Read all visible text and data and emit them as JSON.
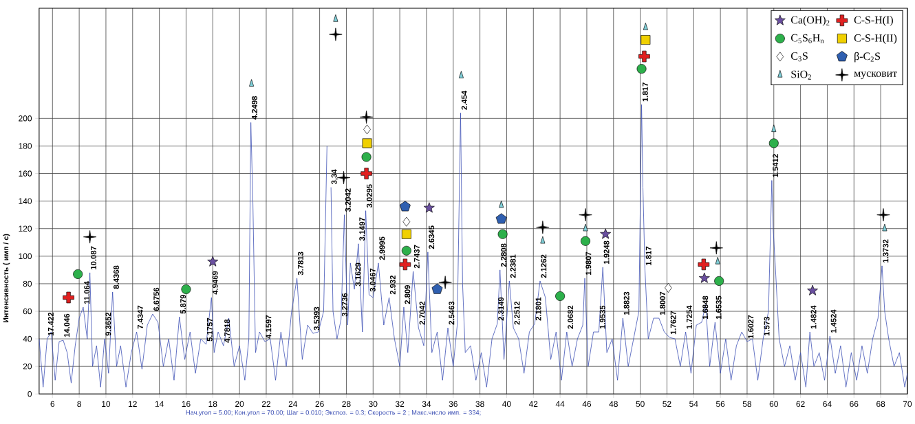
{
  "chart_data": {
    "type": "line",
    "xlim": [
      5,
      70
    ],
    "ylim": [
      0,
      280
    ],
    "xticks": [
      6,
      8,
      10,
      12,
      14,
      16,
      18,
      20,
      22,
      24,
      26,
      28,
      30,
      32,
      34,
      36,
      38,
      40,
      42,
      44,
      46,
      48,
      50,
      52,
      54,
      56,
      58,
      60,
      62,
      64,
      66,
      68,
      70
    ],
    "yticks": [
      0,
      20,
      40,
      60,
      80,
      100,
      120,
      140,
      160,
      180,
      200
    ],
    "ylabel": "Интенсивность ( имп / с)",
    "grid": true,
    "legend": "top right",
    "series": [
      {
        "color": "#3c4fb4",
        "x": [
          5,
          5.3,
          5.6,
          5.9,
          6.2,
          6.5,
          6.8,
          7.1,
          7.4,
          7.7,
          8.0,
          8.3,
          8.6,
          8.8,
          9.0,
          9.3,
          9.6,
          9.9,
          10.2,
          10.5,
          10.8,
          11.1,
          11.5,
          11.9,
          12.3,
          12.7,
          13.1,
          13.5,
          13.9,
          14.3,
          14.7,
          15.1,
          15.5,
          15.9,
          16.3,
          16.7,
          17.1,
          17.5,
          17.9,
          18.1,
          18.4,
          18.8,
          19.2,
          19.6,
          20.0,
          20.4,
          20.7,
          20.85,
          21.0,
          21.2,
          21.5,
          21.9,
          22.3,
          22.7,
          23.1,
          23.5,
          23.9,
          24.3,
          24.7,
          25.1,
          25.5,
          25.9,
          26.3,
          26.55,
          26.65,
          26.75,
          26.85,
          27.0,
          27.3,
          27.6,
          27.85,
          28.1,
          28.3,
          28.6,
          28.9,
          29.2,
          29.45,
          29.7,
          30.0,
          30.4,
          30.8,
          31.2,
          31.6,
          32.0,
          32.3,
          32.6,
          33.0,
          33.4,
          33.8,
          34.1,
          34.4,
          34.8,
          35.2,
          35.6,
          36.0,
          36.3,
          36.55,
          36.7,
          36.9,
          37.3,
          37.7,
          38.1,
          38.5,
          38.9,
          39.3,
          39.5,
          39.8,
          40.2,
          40.5,
          40.9,
          41.3,
          41.7,
          42.1,
          42.5,
          42.9,
          43.3,
          43.7,
          44.1,
          44.5,
          44.9,
          45.3,
          45.7,
          45.85,
          46.1,
          46.5,
          46.9,
          47.2,
          47.5,
          47.9,
          48.3,
          48.7,
          49.1,
          49.5,
          49.9,
          50.1,
          50.2,
          50.35,
          50.6,
          51.0,
          51.4,
          51.8,
          52.2,
          52.6,
          53.0,
          53.4,
          53.8,
          54.2,
          54.6,
          54.9,
          55.2,
          55.6,
          56.0,
          56.4,
          56.8,
          57.2,
          57.6,
          58.0,
          58.4,
          58.8,
          59.2,
          59.6,
          59.85,
          59.95,
          60.1,
          60.4,
          60.8,
          61.2,
          61.6,
          62.0,
          62.4,
          62.7,
          63.0,
          63.4,
          63.8,
          64.2,
          64.6,
          65.0,
          65.4,
          65.8,
          66.2,
          66.6,
          67.0,
          67.4,
          67.8,
          68.1,
          68.3,
          68.6,
          69.0,
          69.4,
          69.8,
          70
        ],
        "values": [
          40,
          5,
          40,
          45,
          10,
          38,
          39,
          30,
          8,
          35,
          55,
          63,
          40,
          88,
          20,
          35,
          5,
          40,
          15,
          74,
          20,
          35,
          5,
          30,
          45,
          18,
          50,
          58,
          52,
          20,
          40,
          10,
          56,
          25,
          45,
          15,
          40,
          36,
          70,
          30,
          45,
          35,
          55,
          20,
          35,
          10,
          40,
          197,
          140,
          30,
          45,
          38,
          40,
          10,
          45,
          20,
          60,
          84,
          25,
          50,
          44,
          45,
          60,
          180,
          null,
          null,
          150,
          60,
          40,
          54,
          130,
          50,
          95,
          76,
          109,
          45,
          133,
          72,
          70,
          95,
          50,
          70,
          40,
          20,
          63,
          30,
          89,
          48,
          35,
          103,
          30,
          45,
          10,
          48,
          20,
          50,
          204,
          80,
          30,
          35,
          10,
          30,
          5,
          40,
          51,
          90,
          25,
          82,
          48,
          40,
          15,
          45,
          51,
          82,
          70,
          25,
          45,
          10,
          45,
          20,
          40,
          50,
          84,
          20,
          45,
          45,
          92,
          30,
          40,
          10,
          55,
          20,
          40,
          60,
          210,
          150,
          91,
          40,
          55,
          55,
          45,
          41,
          40,
          20,
          45,
          15,
          50,
          52,
          65,
          20,
          52,
          15,
          40,
          10,
          35,
          45,
          38,
          40,
          10,
          40,
          60,
          155,
          120,
          95,
          40,
          20,
          35,
          10,
          30,
          5,
          45,
          20,
          30,
          10,
          42,
          15,
          35,
          5,
          30,
          10,
          35,
          15,
          40,
          55,
          93,
          60,
          40,
          20,
          30,
          5,
          15
        ]
      },
      {
        "name": "Ca(OH)$_{2}$",
        "type": "scatter",
        "marker": "star",
        "color": "#6a4fa0",
        "x": [
          18.0,
          34.2,
          47.4,
          54.8,
          62.9
        ],
        "values": [
          96,
          135,
          116,
          84,
          75
        ]
      },
      {
        "name": "C-S-H(I)",
        "type": "scatter",
        "marker": "plus",
        "color": "#e02020",
        "x": [
          7.2,
          29.5,
          32.4,
          50.3,
          54.75
        ],
        "values": [
          70,
          160,
          94,
          245,
          94
        ]
      },
      {
        "name": "C$_{5}$S$_{6}$H$_{n}$",
        "type": "scatter",
        "marker": "circle",
        "color": "#2db04b",
        "x": [
          7.9,
          16.0,
          29.5,
          32.5,
          39.7,
          44.0,
          45.9,
          50.1,
          55.9,
          60.0
        ],
        "values": [
          87,
          76,
          172,
          104,
          116,
          71,
          111,
          236,
          82,
          182
        ]
      },
      {
        "name": "C-S-H(II)",
        "type": "scatter",
        "marker": "square",
        "color": "#f0d000",
        "x": [
          29.55,
          32.5,
          50.4
        ],
        "values": [
          182,
          116,
          257
        ]
      },
      {
        "name": "C$_{3}$S",
        "type": "scatter",
        "marker": "diamond",
        "color": "#ffffff",
        "x": [
          29.55,
          32.5,
          52.1
        ],
        "values": [
          192,
          125,
          77
        ]
      },
      {
        "name": "β-C$_{2}$S",
        "type": "scatter",
        "color": "#2f5fb0",
        "x": [
          32.4,
          34.8,
          39.6
        ],
        "values": [
          136,
          76,
          127
        ]
      },
      {
        "name": "SiO$_{2}$",
        "type": "scatter",
        "marker": "triangle",
        "color": "#7fcfd8",
        "x": [
          20.9,
          27.2,
          36.6,
          39.6,
          42.7,
          45.9,
          50.4,
          55.8,
          60.0,
          68.3
        ],
        "values": [
          225,
          272,
          231,
          137,
          111,
          120,
          266,
          96,
          192,
          120
        ]
      },
      {
        "name": "мусковит",
        "type": "scatter",
        "marker": "cross",
        "color": "#000000",
        "x": [
          8.8,
          27.2,
          27.8,
          29.5,
          35.4,
          42.7,
          45.9,
          55.7,
          68.2
        ],
        "values": [
          114,
          261,
          157,
          201,
          81,
          121,
          130,
          106,
          130
        ]
      }
    ],
    "annotations": [
      {
        "text": "17.422",
        "x": 5.6,
        "y": 40
      },
      {
        "text": "14.046",
        "x": 6.8,
        "y": 39
      },
      {
        "text": "11.064",
        "x": 8.3,
        "y": 63
      },
      {
        "text": "10.087",
        "x": 8.8,
        "y": 88
      },
      {
        "text": "9.3652",
        "x": 9.9,
        "y": 40
      },
      {
        "text": "8.4368",
        "x": 10.5,
        "y": 74
      },
      {
        "text": "7.4347",
        "x": 12.3,
        "y": 45
      },
      {
        "text": "6.6756",
        "x": 13.5,
        "y": 58
      },
      {
        "text": "5.879",
        "x": 15.5,
        "y": 56
      },
      {
        "text": "5.1757",
        "x": 17.5,
        "y": 36
      },
      {
        "text": "4.9469",
        "x": 17.9,
        "y": 70
      },
      {
        "text": "4.7818",
        "x": 18.8,
        "y": 35
      },
      {
        "text": "4.2498",
        "x": 20.85,
        "y": 197
      },
      {
        "text": "4.1597",
        "x": 21.9,
        "y": 38
      },
      {
        "text": "3.7813",
        "x": 24.3,
        "y": 84
      },
      {
        "text": "3.5393",
        "x": 25.5,
        "y": 44
      },
      {
        "text": "3,34",
        "x": 26.85,
        "y": 150
      },
      {
        "text": "3.2736",
        "x": 27.6,
        "y": 54
      },
      {
        "text": "3.2042",
        "x": 27.85,
        "y": 130
      },
      {
        "text": "3.1497",
        "x": 28.9,
        "y": 109
      },
      {
        "text": "3.1629",
        "x": 28.6,
        "y": 76
      },
      {
        "text": "3.0467",
        "x": 29.7,
        "y": 72
      },
      {
        "text": "3.0295",
        "x": 29.45,
        "y": 133
      },
      {
        "text": "2.9995",
        "x": 30.4,
        "y": 95
      },
      {
        "text": "2.932",
        "x": 31.2,
        "y": 70
      },
      {
        "text": "2.809",
        "x": 32.3,
        "y": 63
      },
      {
        "text": "2.7437",
        "x": 33.0,
        "y": 89
      },
      {
        "text": "2.7042",
        "x": 33.4,
        "y": 48
      },
      {
        "text": "2.6345",
        "x": 34.1,
        "y": 103
      },
      {
        "text": "2.5463",
        "x": 35.6,
        "y": 48
      },
      {
        "text": "2.454",
        "x": 36.55,
        "y": 204
      },
      {
        "text": "2.3149",
        "x": 39.3,
        "y": 51
      },
      {
        "text": "2.2808",
        "x": 39.5,
        "y": 90
      },
      {
        "text": "2.2381",
        "x": 40.2,
        "y": 82
      },
      {
        "text": "2.2512",
        "x": 40.5,
        "y": 48
      },
      {
        "text": "2.1801",
        "x": 42.1,
        "y": 51
      },
      {
        "text": "2.1262",
        "x": 42.5,
        "y": 82
      },
      {
        "text": "2.0682",
        "x": 44.5,
        "y": 45
      },
      {
        "text": "1.9807",
        "x": 45.85,
        "y": 84
      },
      {
        "text": "1.9535",
        "x": 46.9,
        "y": 45
      },
      {
        "text": "1.9248",
        "x": 47.2,
        "y": 92
      },
      {
        "text": "1.8823",
        "x": 48.7,
        "y": 55
      },
      {
        "text": "1.817",
        "x": 50.1,
        "y": 210
      },
      {
        "text": "1.817",
        "x": 50.35,
        "y": 91
      },
      {
        "text": "1.8007",
        "x": 51.4,
        "y": 55
      },
      {
        "text": "1.7627",
        "x": 52.2,
        "y": 41
      },
      {
        "text": "1.7254",
        "x": 53.4,
        "y": 45
      },
      {
        "text": "1.6848",
        "x": 54.6,
        "y": 52
      },
      {
        "text": "1.6535",
        "x": 55.6,
        "y": 52
      },
      {
        "text": "1.6027",
        "x": 58.0,
        "y": 38
      },
      {
        "text": "1.573",
        "x": 59.2,
        "y": 40
      },
      {
        "text": "1.5412",
        "x": 59.85,
        "y": 155
      },
      {
        "text": "1.4824",
        "x": 62.7,
        "y": 45
      },
      {
        "text": "1.4524",
        "x": 64.2,
        "y": 42
      },
      {
        "text": "1.3732",
        "x": 68.1,
        "y": 93
      },
      "Нач.угол = 5.00;  Кон.угол = 70.00;  Шаг = 0.010;  Экспоз. = 0.3;  Скорость =   2 ;  Макс.число имп. = 334;"
    ]
  }
}
